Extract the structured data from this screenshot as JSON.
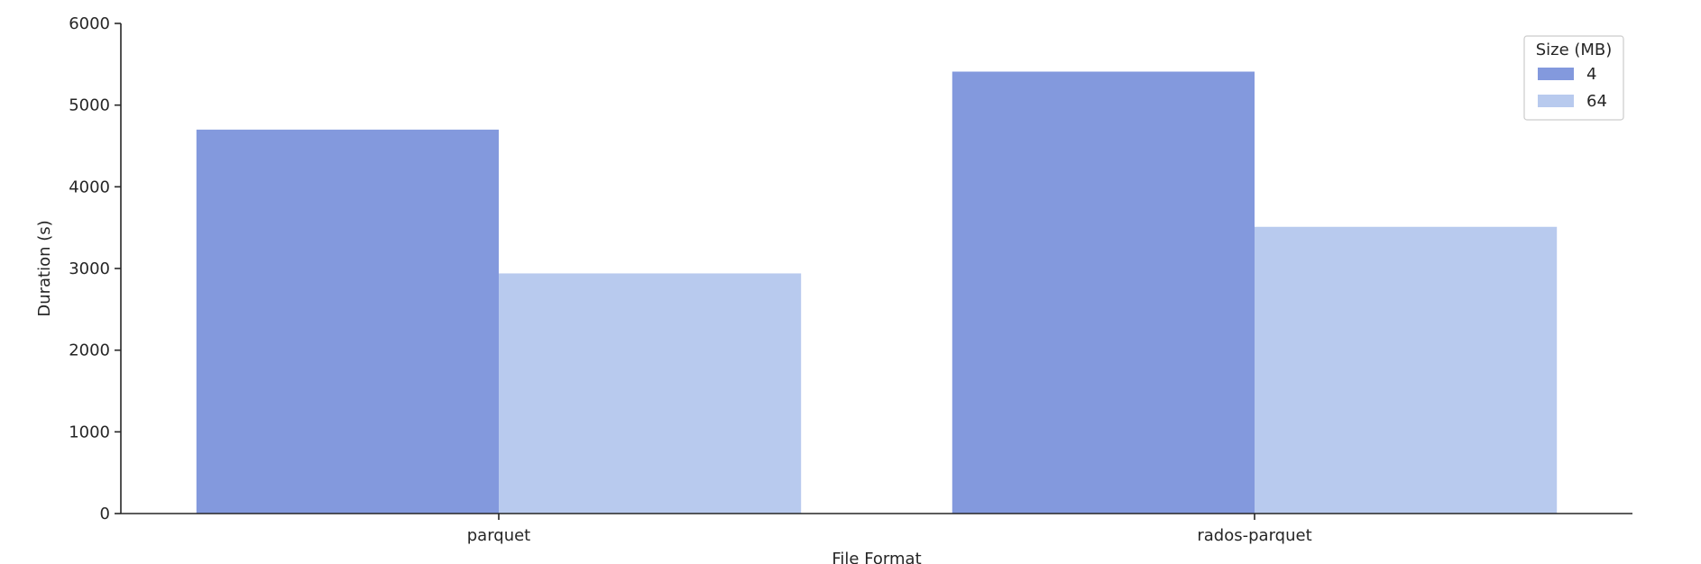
{
  "chart_data": {
    "type": "bar",
    "title": "",
    "xlabel": "File Format",
    "ylabel": "Duration (s)",
    "categories": [
      "parquet",
      "rados-parquet"
    ],
    "series": [
      {
        "name": "4",
        "values": [
          4700,
          5410
        ],
        "color": "#8399dd"
      },
      {
        "name": "64",
        "values": [
          2940,
          3510
        ],
        "color": "#b8caee"
      }
    ],
    "ylim": [
      0,
      6000
    ],
    "yticks": [
      0,
      1000,
      2000,
      3000,
      4000,
      5000,
      6000
    ],
    "legend": {
      "title": "Size (MB)",
      "placement": "top-right"
    },
    "grid": false
  }
}
